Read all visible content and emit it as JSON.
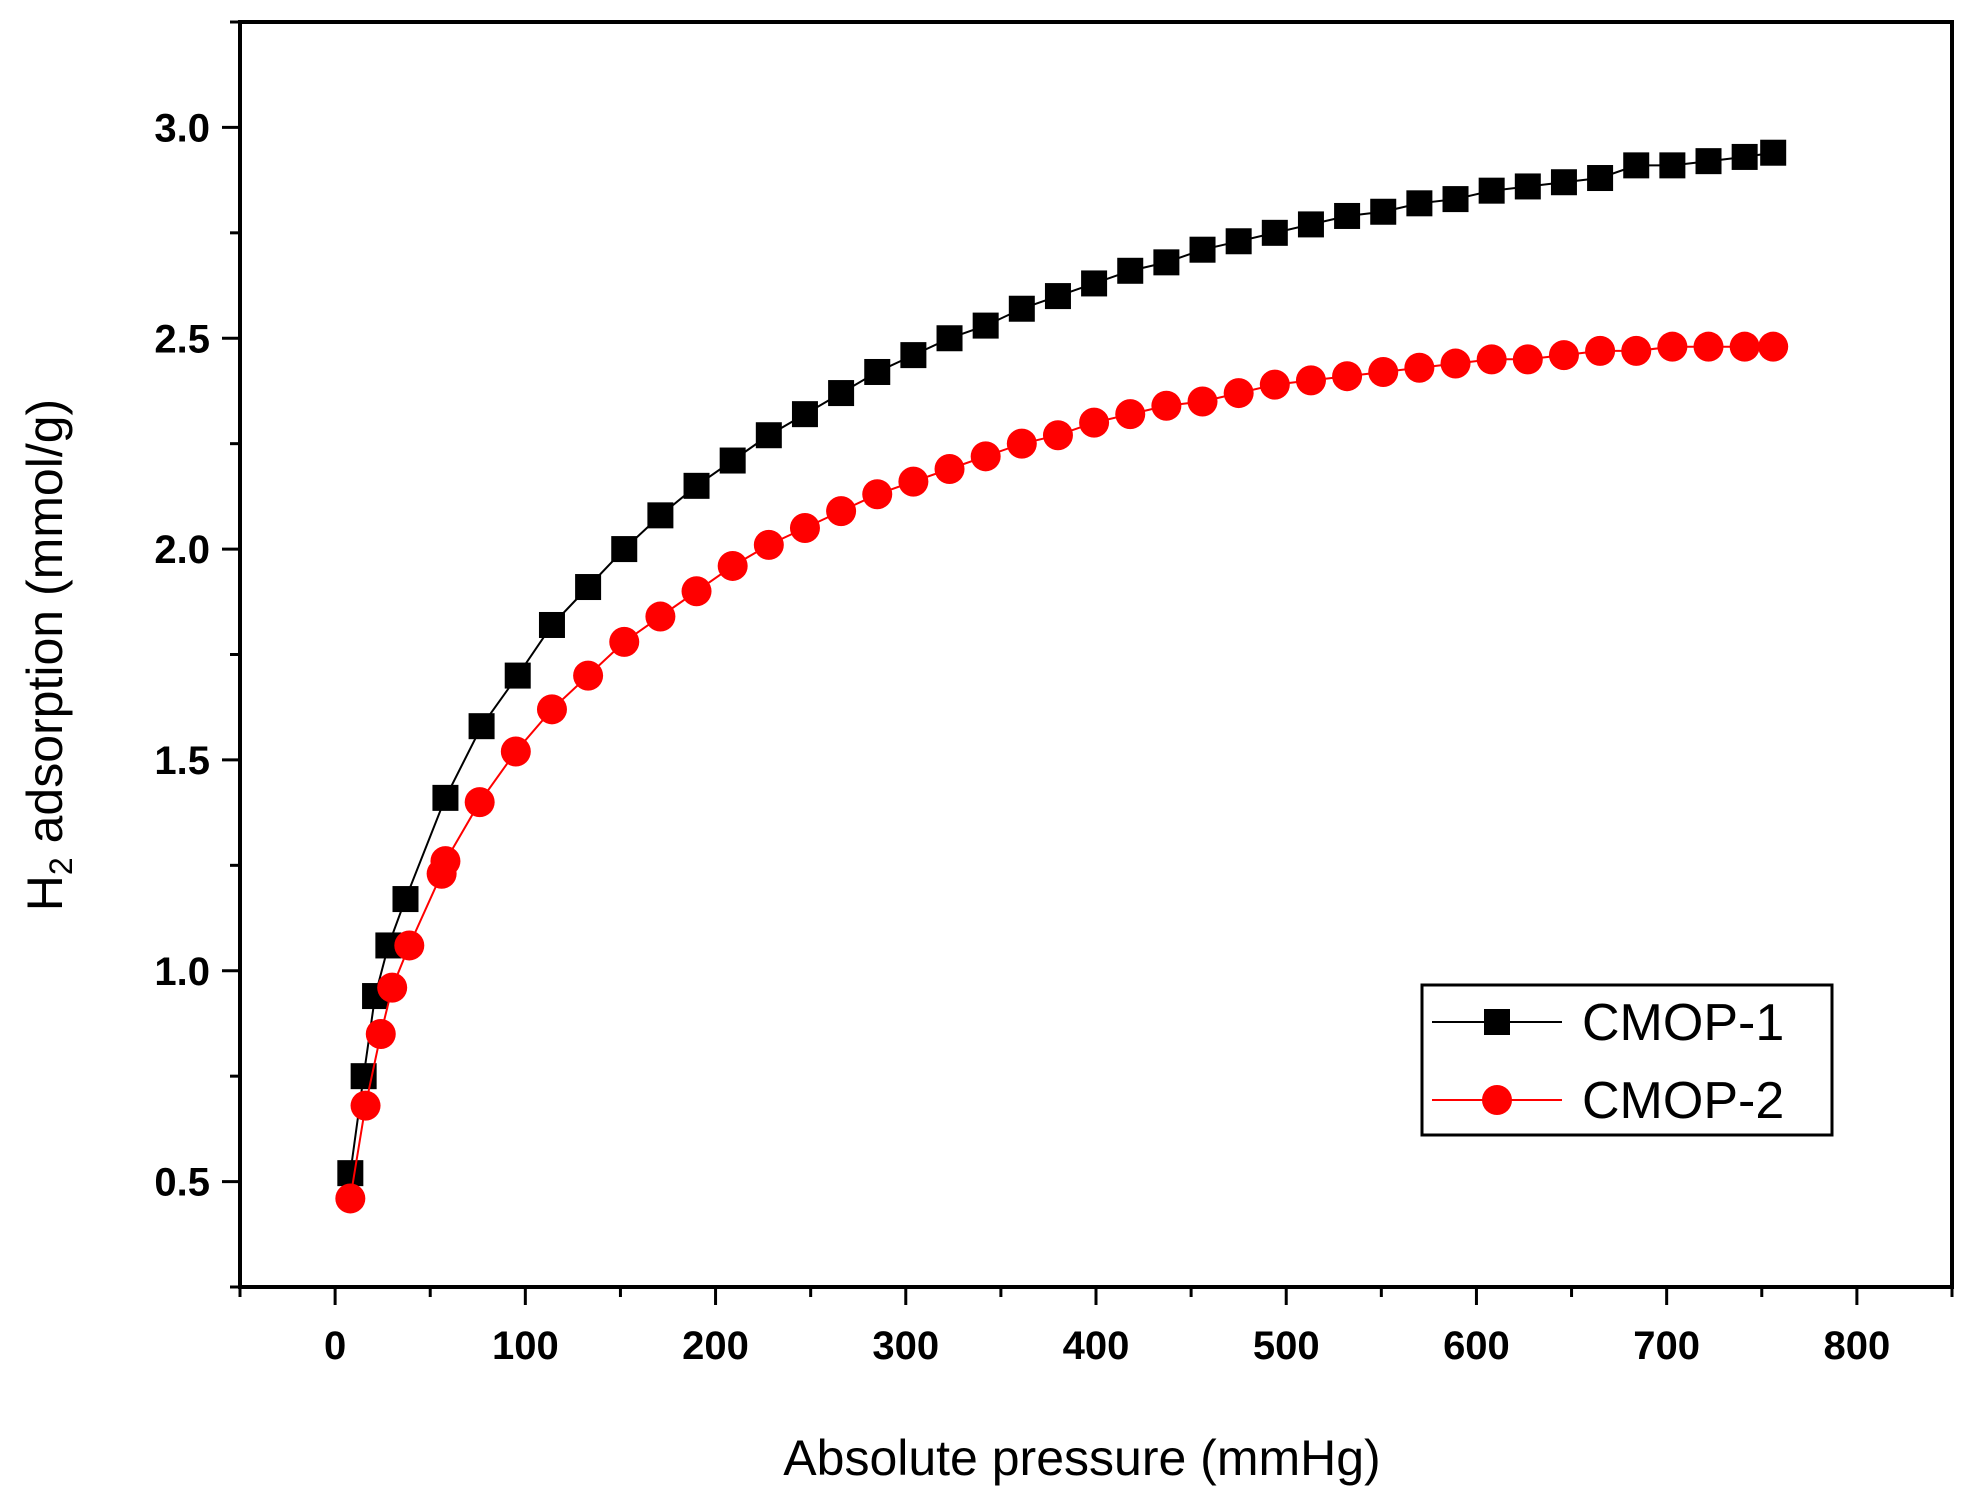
{
  "chart_data": {
    "type": "line",
    "title": "",
    "xlabel": "Absolute pressure (mmHg)",
    "ylabel_main": "H",
    "ylabel_sub": "2",
    "ylabel_rest": " adsorption (mmol/g)",
    "xlim": [
      -50,
      850
    ],
    "ylim": [
      0.25,
      3.25
    ],
    "xticks": [
      0,
      100,
      200,
      300,
      400,
      500,
      600,
      700,
      800
    ],
    "yticks": [
      0.5,
      1.0,
      1.5,
      2.0,
      2.5,
      3.0
    ],
    "ytick_labels": [
      "0.5",
      "1.0",
      "1.5",
      "2.0",
      "2.5",
      "3.0"
    ],
    "legend_position": "center-right",
    "series": [
      {
        "name": "CMOP-1",
        "color": "#000000",
        "marker": "square",
        "x": [
          8,
          15,
          21,
          28,
          37,
          58,
          77,
          96,
          114,
          133,
          152,
          171,
          190,
          209,
          228,
          247,
          266,
          285,
          304,
          323,
          342,
          361,
          380,
          399,
          418,
          437,
          456,
          475,
          494,
          513,
          532,
          551,
          570,
          589,
          608,
          627,
          646,
          665,
          684,
          703,
          722,
          741,
          756
        ],
        "y": [
          0.52,
          0.75,
          0.94,
          1.06,
          1.17,
          1.41,
          1.58,
          1.7,
          1.82,
          1.91,
          2.0,
          2.08,
          2.15,
          2.21,
          2.27,
          2.32,
          2.37,
          2.42,
          2.46,
          2.5,
          2.53,
          2.57,
          2.6,
          2.63,
          2.66,
          2.68,
          2.71,
          2.73,
          2.75,
          2.77,
          2.79,
          2.8,
          2.82,
          2.83,
          2.85,
          2.86,
          2.87,
          2.88,
          2.91,
          2.91,
          2.92,
          2.93,
          2.94
        ]
      },
      {
        "name": "CMOP-2",
        "color": "#ff0000",
        "marker": "circle",
        "x": [
          8,
          16,
          24,
          30,
          39,
          56,
          58,
          76,
          95,
          114,
          133,
          152,
          171,
          190,
          209,
          228,
          247,
          266,
          285,
          304,
          323,
          342,
          361,
          380,
          399,
          418,
          437,
          456,
          475,
          494,
          513,
          532,
          551,
          570,
          589,
          608,
          627,
          646,
          665,
          684,
          703,
          722,
          741,
          756
        ],
        "y": [
          0.46,
          0.68,
          0.85,
          0.96,
          1.06,
          1.23,
          1.26,
          1.4,
          1.52,
          1.62,
          1.7,
          1.78,
          1.84,
          1.9,
          1.96,
          2.01,
          2.05,
          2.09,
          2.13,
          2.16,
          2.19,
          2.22,
          2.25,
          2.27,
          2.3,
          2.32,
          2.34,
          2.35,
          2.37,
          2.39,
          2.4,
          2.41,
          2.42,
          2.43,
          2.44,
          2.45,
          2.45,
          2.46,
          2.47,
          2.47,
          2.48,
          2.48,
          2.48,
          2.48
        ]
      }
    ]
  }
}
